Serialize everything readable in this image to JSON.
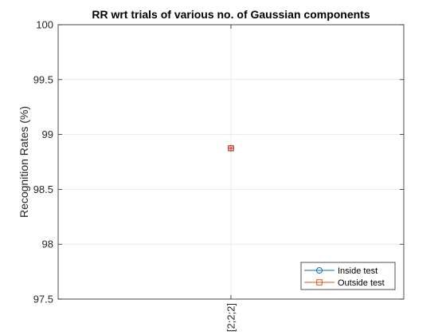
{
  "chart_data": {
    "type": "line",
    "title": "RR wrt trials of various no. of Gaussian components",
    "xlabel": "",
    "ylabel": "Recognition Rates (%)",
    "categories": [
      "[2;2;2]"
    ],
    "ylim": [
      97.5,
      100
    ],
    "yticks": [
      "97.5",
      "98",
      "98.5",
      "99",
      "99.5",
      "100"
    ],
    "grid": true,
    "legend_position": "bottom-right",
    "series": [
      {
        "name": "Inside test",
        "values": [
          98.875
        ],
        "color": "#0072BD",
        "marker": "circle"
      },
      {
        "name": "Outside test",
        "values": [
          98.875
        ],
        "color": "#D95319",
        "marker": "square"
      }
    ],
    "highlight_marker": {
      "shape": "plus",
      "color": "#FF0000"
    }
  }
}
